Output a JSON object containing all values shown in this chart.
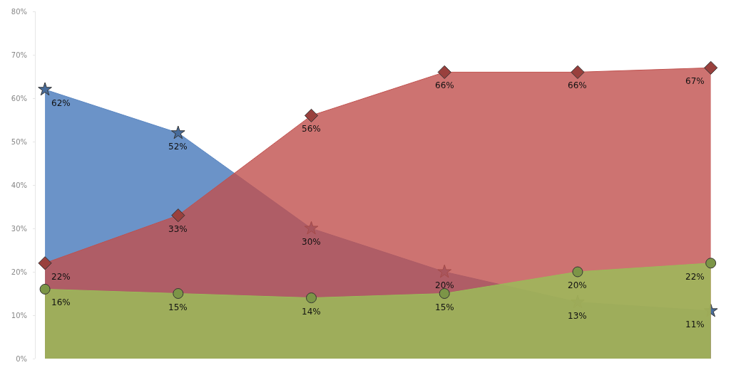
{
  "chart_data": {
    "type": "area",
    "categories": [
      null,
      null,
      null,
      null,
      null,
      null
    ],
    "series": [
      {
        "color": "#5b87c2",
        "marker": "star",
        "values": [
          62,
          52,
          30,
          20,
          13,
          11
        ],
        "value_labels": [
          "62%",
          "52%",
          "30%",
          "20%",
          "13%",
          "11%"
        ]
      },
      {
        "color": "#c0504d",
        "marker": "diamond",
        "values": [
          22,
          33,
          56,
          66,
          66,
          67
        ],
        "value_labels": [
          "22%",
          "33%",
          "56%",
          "66%",
          "66%",
          "67%"
        ]
      },
      {
        "color": "#9bbb59",
        "marker": "circle",
        "values": [
          16,
          15,
          14,
          15,
          20,
          22
        ],
        "value_labels": [
          "16%",
          "15%",
          "14%",
          "15%",
          "20%",
          "22%"
        ]
      }
    ],
    "ylim": [
      0,
      80
    ],
    "yticks": [
      {
        "value": 0,
        "label": "0%"
      },
      {
        "value": 10,
        "label": "10%"
      },
      {
        "value": 20,
        "label": "20%"
      },
      {
        "value": 30,
        "label": "30%"
      },
      {
        "value": 40,
        "label": "40%"
      },
      {
        "value": 50,
        "label": "50%"
      },
      {
        "value": 60,
        "label": "60%"
      },
      {
        "value": 70,
        "label": "70%"
      },
      {
        "value": 80,
        "label": "80%"
      }
    ],
    "tick_labels": "y"
  }
}
